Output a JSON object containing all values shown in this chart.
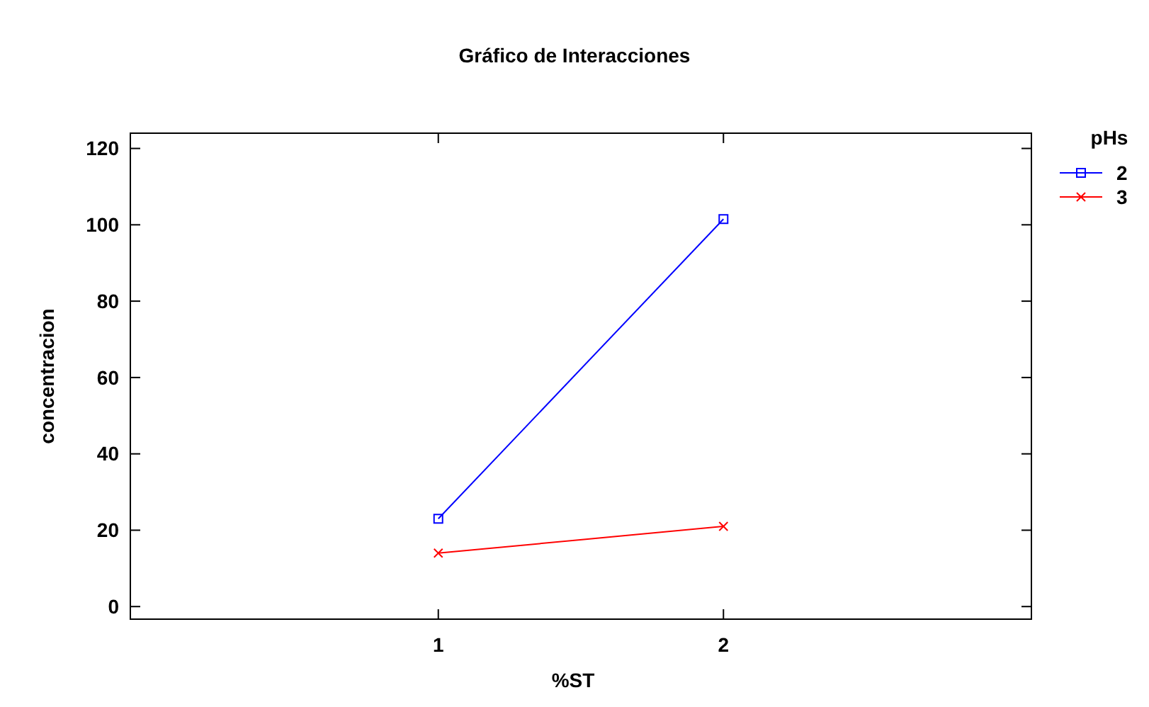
{
  "chart_data": {
    "type": "line",
    "title": "Gráfico de Interacciones",
    "xlabel": "%ST",
    "ylabel": "concentracion",
    "legend_title": "pHs",
    "x": [
      1,
      2
    ],
    "series": [
      {
        "name": "2",
        "color": "#0000ff",
        "values": [
          23,
          101.5
        ],
        "marker": "square"
      },
      {
        "name": "3",
        "color": "#ff0000",
        "values": [
          14,
          21
        ],
        "marker": "cross"
      }
    ],
    "xlim": [
      -0.08,
      3.08
    ],
    "xticks": [
      1,
      2
    ],
    "ylim": [
      -3.3,
      124
    ],
    "yticks": [
      0,
      20,
      40,
      60,
      80,
      100,
      120
    ],
    "grid": false,
    "legend": "top right",
    "line_style": "solid"
  }
}
